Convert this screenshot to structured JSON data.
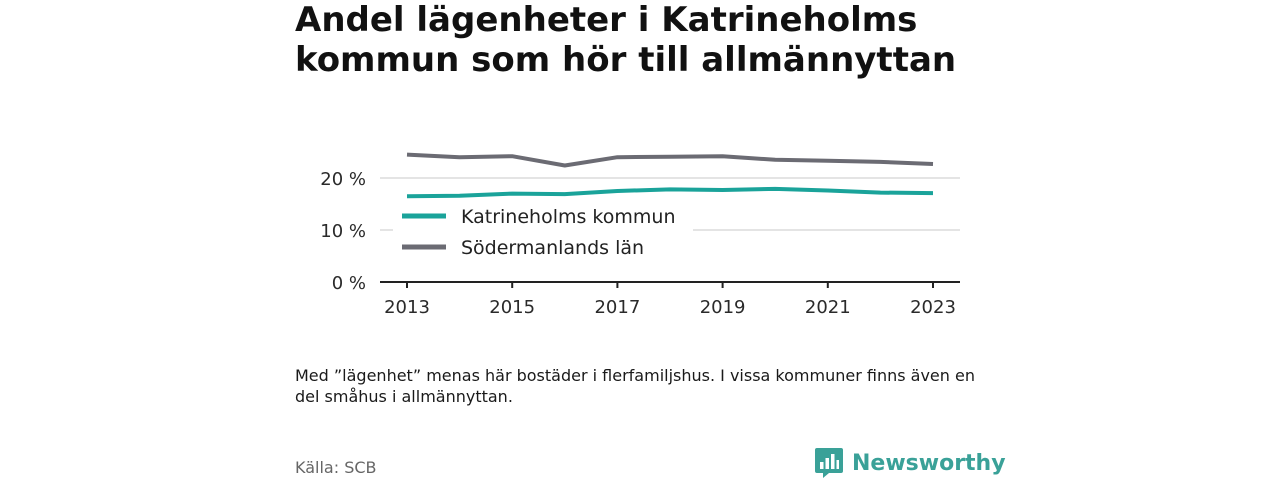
{
  "title": "Andel lägenheter i Katrineholms kommun som hör till allmännyttan",
  "note": "Med ”lägenhet” menas här bostäder i flerfamiljshus. I vissa kommuner finns även en del småhus i allmännyttan.",
  "source": "Källa: SCB",
  "brand": {
    "name": "Newsworthy",
    "icon": "newsworthy-logo-icon"
  },
  "chart_data": {
    "type": "line",
    "title": "",
    "xlabel": "",
    "ylabel": "",
    "x": [
      2013,
      2014,
      2015,
      2016,
      2017,
      2018,
      2019,
      2020,
      2021,
      2022,
      2023
    ],
    "x_ticks": [
      "2013",
      "2015",
      "2017",
      "2019",
      "2021",
      "2023"
    ],
    "y_ticks": [
      "0 %",
      "10 %",
      "20 %"
    ],
    "y_tick_values": [
      0,
      10,
      20
    ],
    "ylim": [
      0,
      26
    ],
    "grid": true,
    "legend_position": "left",
    "series": [
      {
        "name": "Katrineholms kommun",
        "color": "#1aa39a",
        "values": [
          16.5,
          16.6,
          17.0,
          16.9,
          17.5,
          17.8,
          17.7,
          17.9,
          17.6,
          17.2,
          17.1
        ]
      },
      {
        "name": "Södermanlands län",
        "color": "#6b6b73",
        "values": [
          24.5,
          24.0,
          24.2,
          22.4,
          24.0,
          24.1,
          24.2,
          23.5,
          23.3,
          23.1,
          22.7
        ]
      }
    ]
  }
}
